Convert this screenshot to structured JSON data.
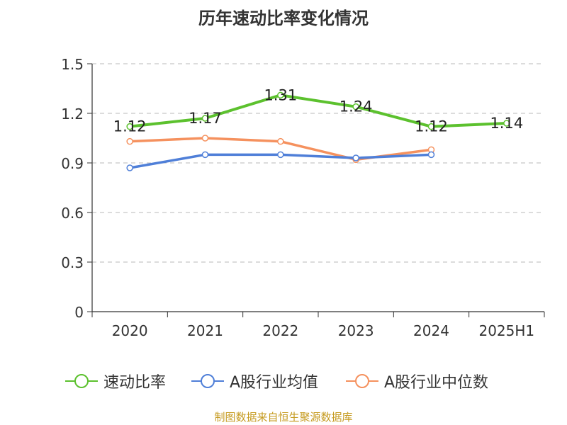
{
  "chart_data": {
    "type": "line",
    "title": "历年速动比率变化情况",
    "categories": [
      "2020",
      "2021",
      "2022",
      "2023",
      "2024",
      "2025H1"
    ],
    "ylim": [
      0,
      1.5
    ],
    "yticks": [
      0,
      0.3,
      0.6,
      0.9,
      1.2,
      1.5
    ],
    "ytick_labels": [
      "0",
      "0.3",
      "0.6",
      "0.9",
      "1.2",
      "1.5"
    ],
    "grid": true,
    "legend_position": "bottom",
    "series": [
      {
        "name": "速动比率",
        "color": "#5cc12e",
        "values": [
          1.12,
          1.17,
          1.31,
          1.24,
          1.12,
          1.14
        ],
        "labels": [
          "1.12",
          "1.17",
          "1.31",
          "1.24",
          "1.12",
          "1.14"
        ]
      },
      {
        "name": "A股行业均值",
        "color": "#4f7fd8",
        "values": [
          0.87,
          0.95,
          0.95,
          0.93,
          0.95,
          null
        ]
      },
      {
        "name": "A股行业中位数",
        "color": "#f5915e",
        "values": [
          1.03,
          1.05,
          1.03,
          0.92,
          0.98,
          null
        ]
      }
    ]
  },
  "source": "制图数据来自恒生聚源数据库"
}
